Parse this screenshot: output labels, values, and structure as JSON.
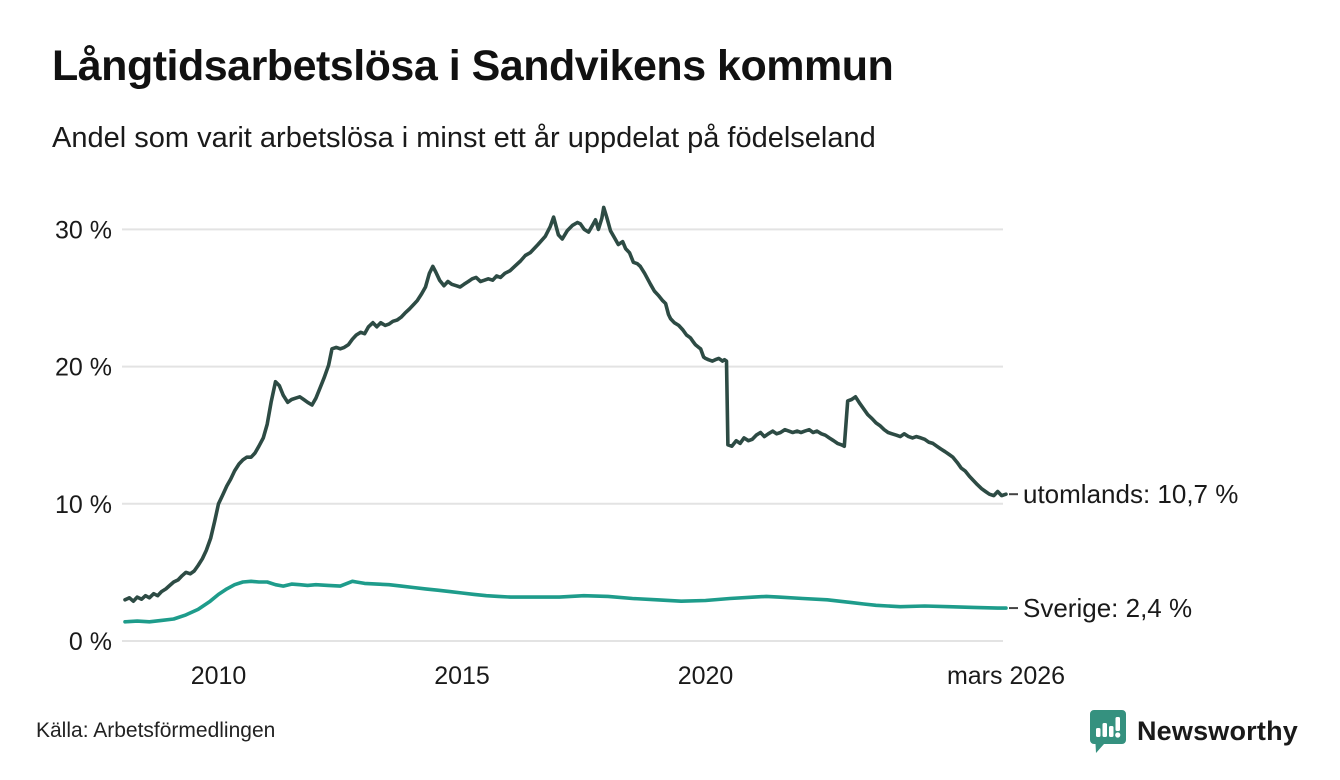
{
  "header": {
    "title": "Långtidsarbetslösa i Sandvikens kommun",
    "subtitle": "Andel som varit arbetslösa i minst ett år uppdelat på födelseland"
  },
  "footer": {
    "source": "Källa: Arbetsförmedlingen",
    "brand": "Newsworthy",
    "brand_color": "#35917f"
  },
  "chart_data": {
    "type": "line",
    "title": "Långtidsarbetslösa i Sandvikens kommun",
    "subtitle": "Andel som varit arbetslösa i minst ett år uppdelat på födelseland",
    "grid": true,
    "grid_color": "#e3e3e3",
    "label_color": "#1a1a1a",
    "x_range": [
      2008.08,
      2026.17
    ],
    "ylim": [
      0,
      32
    ],
    "y_axis": {
      "ticks": [
        {
          "value": 0,
          "label": "0 %"
        },
        {
          "value": 10,
          "label": "10 %"
        },
        {
          "value": 20,
          "label": "20 %"
        },
        {
          "value": 30,
          "label": "30 %"
        }
      ]
    },
    "x_axis": {
      "ticks": [
        {
          "year": 2010,
          "label": "2010"
        },
        {
          "year": 2015,
          "label": "2015"
        },
        {
          "year": 2020,
          "label": "2020"
        },
        {
          "year": 2026.17,
          "label": "mars 2026"
        }
      ]
    },
    "series": [
      {
        "name": "utomlands",
        "end_label": "utomlands: 10,7 %",
        "last_value": 10.7,
        "color": "#2d4b44",
        "points": [
          [
            2008.08,
            3.0
          ],
          [
            2008.17,
            3.15
          ],
          [
            2008.25,
            2.9
          ],
          [
            2008.33,
            3.2
          ],
          [
            2008.42,
            3.05
          ],
          [
            2008.5,
            3.3
          ],
          [
            2008.58,
            3.15
          ],
          [
            2008.67,
            3.45
          ],
          [
            2008.75,
            3.3
          ],
          [
            2008.83,
            3.6
          ],
          [
            2008.92,
            3.8
          ],
          [
            2009.0,
            4.05
          ],
          [
            2009.08,
            4.3
          ],
          [
            2009.17,
            4.45
          ],
          [
            2009.25,
            4.75
          ],
          [
            2009.33,
            5.0
          ],
          [
            2009.42,
            4.9
          ],
          [
            2009.5,
            5.1
          ],
          [
            2009.58,
            5.5
          ],
          [
            2009.67,
            6.0
          ],
          [
            2009.75,
            6.6
          ],
          [
            2009.84,
            7.5
          ],
          [
            2009.92,
            8.7
          ],
          [
            2010.0,
            10.0
          ],
          [
            2010.08,
            10.6
          ],
          [
            2010.17,
            11.3
          ],
          [
            2010.25,
            11.8
          ],
          [
            2010.33,
            12.4
          ],
          [
            2010.42,
            12.9
          ],
          [
            2010.5,
            13.2
          ],
          [
            2010.58,
            13.4
          ],
          [
            2010.67,
            13.4
          ],
          [
            2010.75,
            13.7
          ],
          [
            2010.83,
            14.2
          ],
          [
            2010.92,
            14.8
          ],
          [
            2011.0,
            15.8
          ],
          [
            2011.08,
            17.4
          ],
          [
            2011.17,
            18.9
          ],
          [
            2011.25,
            18.6
          ],
          [
            2011.33,
            17.9
          ],
          [
            2011.42,
            17.4
          ],
          [
            2011.5,
            17.6
          ],
          [
            2011.58,
            17.7
          ],
          [
            2011.67,
            17.8
          ],
          [
            2011.75,
            17.6
          ],
          [
            2011.83,
            17.4
          ],
          [
            2011.92,
            17.2
          ],
          [
            2012.0,
            17.7
          ],
          [
            2012.08,
            18.4
          ],
          [
            2012.17,
            19.2
          ],
          [
            2012.26,
            20.1
          ],
          [
            2012.33,
            21.3
          ],
          [
            2012.42,
            21.4
          ],
          [
            2012.5,
            21.3
          ],
          [
            2012.58,
            21.4
          ],
          [
            2012.67,
            21.6
          ],
          [
            2012.75,
            22.0
          ],
          [
            2012.83,
            22.3
          ],
          [
            2012.92,
            22.5
          ],
          [
            2013.0,
            22.4
          ],
          [
            2013.08,
            22.9
          ],
          [
            2013.17,
            23.2
          ],
          [
            2013.25,
            22.9
          ],
          [
            2013.33,
            23.2
          ],
          [
            2013.42,
            23.0
          ],
          [
            2013.5,
            23.1
          ],
          [
            2013.58,
            23.3
          ],
          [
            2013.67,
            23.4
          ],
          [
            2013.75,
            23.6
          ],
          [
            2013.83,
            23.9
          ],
          [
            2013.92,
            24.2
          ],
          [
            2014.0,
            24.5
          ],
          [
            2014.08,
            24.8
          ],
          [
            2014.17,
            25.3
          ],
          [
            2014.25,
            25.8
          ],
          [
            2014.33,
            26.8
          ],
          [
            2014.4,
            27.3
          ],
          [
            2014.46,
            26.9
          ],
          [
            2014.54,
            26.3
          ],
          [
            2014.63,
            25.9
          ],
          [
            2014.71,
            26.2
          ],
          [
            2014.79,
            26.0
          ],
          [
            2014.88,
            25.9
          ],
          [
            2014.96,
            25.8
          ],
          [
            2015.04,
            26.0
          ],
          [
            2015.13,
            26.2
          ],
          [
            2015.21,
            26.4
          ],
          [
            2015.29,
            26.5
          ],
          [
            2015.38,
            26.2
          ],
          [
            2015.46,
            26.3
          ],
          [
            2015.54,
            26.4
          ],
          [
            2015.63,
            26.3
          ],
          [
            2015.71,
            26.6
          ],
          [
            2015.79,
            26.5
          ],
          [
            2015.88,
            26.8
          ],
          [
            2015.99,
            27.0
          ],
          [
            2016.08,
            27.3
          ],
          [
            2016.2,
            27.7
          ],
          [
            2016.3,
            28.1
          ],
          [
            2016.4,
            28.3
          ],
          [
            2016.56,
            28.9
          ],
          [
            2016.71,
            29.5
          ],
          [
            2016.81,
            30.2
          ],
          [
            2016.88,
            30.9
          ],
          [
            2016.98,
            29.6
          ],
          [
            2017.06,
            29.3
          ],
          [
            2017.16,
            29.9
          ],
          [
            2017.27,
            30.3
          ],
          [
            2017.37,
            30.5
          ],
          [
            2017.43,
            30.4
          ],
          [
            2017.51,
            30.0
          ],
          [
            2017.6,
            29.8
          ],
          [
            2017.68,
            30.3
          ],
          [
            2017.74,
            30.7
          ],
          [
            2017.8,
            30.0
          ],
          [
            2017.87,
            30.8
          ],
          [
            2017.91,
            31.6
          ],
          [
            2017.97,
            30.9
          ],
          [
            2018.05,
            29.9
          ],
          [
            2018.13,
            29.4
          ],
          [
            2018.21,
            28.9
          ],
          [
            2018.3,
            29.1
          ],
          [
            2018.36,
            28.6
          ],
          [
            2018.44,
            28.3
          ],
          [
            2018.52,
            27.6
          ],
          [
            2018.6,
            27.5
          ],
          [
            2018.66,
            27.3
          ],
          [
            2018.75,
            26.8
          ],
          [
            2018.87,
            26.0
          ],
          [
            2018.95,
            25.5
          ],
          [
            2019.03,
            25.2
          ],
          [
            2019.12,
            24.8
          ],
          [
            2019.18,
            24.6
          ],
          [
            2019.24,
            23.8
          ],
          [
            2019.28,
            23.5
          ],
          [
            2019.36,
            23.2
          ],
          [
            2019.45,
            23.0
          ],
          [
            2019.53,
            22.7
          ],
          [
            2019.61,
            22.3
          ],
          [
            2019.69,
            22.1
          ],
          [
            2019.75,
            21.8
          ],
          [
            2019.79,
            21.6
          ],
          [
            2019.86,
            21.4
          ],
          [
            2019.9,
            21.3
          ],
          [
            2019.96,
            20.7
          ],
          [
            2020.0,
            20.6
          ],
          [
            2020.06,
            20.5
          ],
          [
            2020.14,
            20.4
          ],
          [
            2020.2,
            20.5
          ],
          [
            2020.27,
            20.6
          ],
          [
            2020.31,
            20.5
          ],
          [
            2020.35,
            20.4
          ],
          [
            2020.39,
            20.5
          ],
          [
            2020.43,
            20.4
          ],
          [
            2020.46,
            14.3
          ],
          [
            2020.54,
            14.2
          ],
          [
            2020.63,
            14.6
          ],
          [
            2020.71,
            14.4
          ],
          [
            2020.79,
            14.8
          ],
          [
            2020.88,
            14.6
          ],
          [
            2020.96,
            14.7
          ],
          [
            2021.04,
            15.0
          ],
          [
            2021.13,
            15.2
          ],
          [
            2021.21,
            14.9
          ],
          [
            2021.29,
            15.1
          ],
          [
            2021.38,
            15.3
          ],
          [
            2021.46,
            15.1
          ],
          [
            2021.54,
            15.2
          ],
          [
            2021.63,
            15.4
          ],
          [
            2021.71,
            15.3
          ],
          [
            2021.79,
            15.2
          ],
          [
            2021.88,
            15.3
          ],
          [
            2021.96,
            15.2
          ],
          [
            2022.04,
            15.3
          ],
          [
            2022.13,
            15.4
          ],
          [
            2022.21,
            15.2
          ],
          [
            2022.29,
            15.3
          ],
          [
            2022.38,
            15.1
          ],
          [
            2022.46,
            15.0
          ],
          [
            2022.54,
            14.8
          ],
          [
            2022.63,
            14.6
          ],
          [
            2022.71,
            14.4
          ],
          [
            2022.79,
            14.3
          ],
          [
            2022.85,
            14.2
          ],
          [
            2022.92,
            17.5
          ],
          [
            2023.0,
            17.6
          ],
          [
            2023.08,
            17.8
          ],
          [
            2023.17,
            17.3
          ],
          [
            2023.25,
            16.9
          ],
          [
            2023.33,
            16.5
          ],
          [
            2023.42,
            16.2
          ],
          [
            2023.5,
            15.9
          ],
          [
            2023.58,
            15.7
          ],
          [
            2023.67,
            15.4
          ],
          [
            2023.75,
            15.2
          ],
          [
            2023.83,
            15.1
          ],
          [
            2023.92,
            15.0
          ],
          [
            2024.0,
            14.9
          ],
          [
            2024.08,
            15.1
          ],
          [
            2024.17,
            14.9
          ],
          [
            2024.25,
            14.8
          ],
          [
            2024.33,
            14.9
          ],
          [
            2024.42,
            14.8
          ],
          [
            2024.5,
            14.7
          ],
          [
            2024.58,
            14.5
          ],
          [
            2024.67,
            14.4
          ],
          [
            2024.75,
            14.2
          ],
          [
            2024.83,
            14.0
          ],
          [
            2024.92,
            13.8
          ],
          [
            2025.0,
            13.6
          ],
          [
            2025.08,
            13.4
          ],
          [
            2025.17,
            13.0
          ],
          [
            2025.25,
            12.6
          ],
          [
            2025.33,
            12.4
          ],
          [
            2025.42,
            12.0
          ],
          [
            2025.5,
            11.7
          ],
          [
            2025.58,
            11.4
          ],
          [
            2025.67,
            11.1
          ],
          [
            2025.75,
            10.9
          ],
          [
            2025.83,
            10.7
          ],
          [
            2025.92,
            10.6
          ],
          [
            2026.0,
            10.9
          ],
          [
            2026.08,
            10.6
          ],
          [
            2026.17,
            10.7
          ]
        ]
      },
      {
        "name": "Sverige",
        "end_label": "Sverige:  2,4 %",
        "last_value": 2.4,
        "color": "#1e9c8b",
        "points": [
          [
            2008.08,
            1.4
          ],
          [
            2008.33,
            1.45
          ],
          [
            2008.58,
            1.4
          ],
          [
            2008.83,
            1.5
          ],
          [
            2009.08,
            1.6
          ],
          [
            2009.33,
            1.9
          ],
          [
            2009.58,
            2.3
          ],
          [
            2009.83,
            2.9
          ],
          [
            2010.0,
            3.4
          ],
          [
            2010.17,
            3.8
          ],
          [
            2010.33,
            4.1
          ],
          [
            2010.5,
            4.3
          ],
          [
            2010.67,
            4.35
          ],
          [
            2010.83,
            4.3
          ],
          [
            2011.0,
            4.3
          ],
          [
            2011.17,
            4.1
          ],
          [
            2011.33,
            4.0
          ],
          [
            2011.5,
            4.15
          ],
          [
            2011.67,
            4.1
          ],
          [
            2011.83,
            4.05
          ],
          [
            2012.0,
            4.1
          ],
          [
            2012.25,
            4.05
          ],
          [
            2012.5,
            4.0
          ],
          [
            2012.75,
            4.35
          ],
          [
            2012.83,
            4.3
          ],
          [
            2013.0,
            4.2
          ],
          [
            2013.25,
            4.15
          ],
          [
            2013.5,
            4.1
          ],
          [
            2013.75,
            4.0
          ],
          [
            2014.0,
            3.9
          ],
          [
            2014.25,
            3.8
          ],
          [
            2014.5,
            3.7
          ],
          [
            2014.75,
            3.6
          ],
          [
            2015.0,
            3.5
          ],
          [
            2015.25,
            3.4
          ],
          [
            2015.5,
            3.3
          ],
          [
            2015.75,
            3.25
          ],
          [
            2016.0,
            3.2
          ],
          [
            2016.5,
            3.2
          ],
          [
            2017.0,
            3.2
          ],
          [
            2017.5,
            3.3
          ],
          [
            2018.0,
            3.25
          ],
          [
            2018.5,
            3.1
          ],
          [
            2019.0,
            3.0
          ],
          [
            2019.5,
            2.9
          ],
          [
            2020.0,
            2.95
          ],
          [
            2020.5,
            3.1
          ],
          [
            2021.0,
            3.2
          ],
          [
            2021.25,
            3.25
          ],
          [
            2021.5,
            3.2
          ],
          [
            2022.0,
            3.1
          ],
          [
            2022.5,
            3.0
          ],
          [
            2022.75,
            2.9
          ],
          [
            2023.0,
            2.8
          ],
          [
            2023.25,
            2.7
          ],
          [
            2023.5,
            2.6
          ],
          [
            2023.75,
            2.55
          ],
          [
            2024.0,
            2.5
          ],
          [
            2024.5,
            2.55
          ],
          [
            2025.0,
            2.5
          ],
          [
            2025.5,
            2.45
          ],
          [
            2026.0,
            2.4
          ],
          [
            2026.17,
            2.4
          ]
        ]
      }
    ]
  }
}
